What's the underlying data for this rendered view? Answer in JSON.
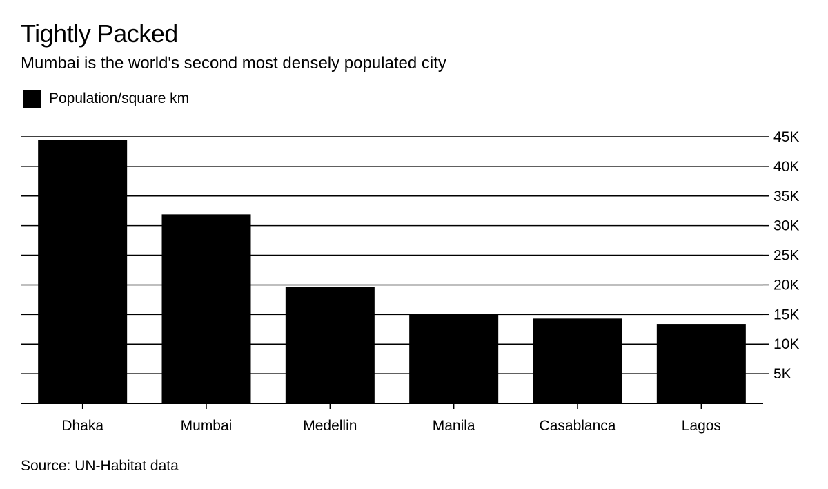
{
  "title": "Tightly Packed",
  "subtitle": "Mumbai is the world's second most densely populated city",
  "legend": {
    "label": "Population/square km",
    "color": "#000000"
  },
  "source": "Source: UN-Habitat data",
  "chart_data": {
    "type": "bar",
    "title": "Tightly Packed",
    "subtitle": "Mumbai is the world's second most densely populated city",
    "categories": [
      "Dhaka",
      "Mumbai",
      "Medellin",
      "Manila",
      "Casablanca",
      "Lagos"
    ],
    "series": [
      {
        "name": "Population/square km",
        "color": "#000000",
        "values": [
          44500,
          31900,
          19700,
          15000,
          14300,
          13400
        ]
      }
    ],
    "ylim": [
      0,
      45000
    ],
    "yticks": [
      5000,
      10000,
      15000,
      20000,
      25000,
      30000,
      35000,
      40000,
      45000
    ],
    "ytick_labels": [
      "5K",
      "10K",
      "15K",
      "20K",
      "25K",
      "30K",
      "35K",
      "40K",
      "45K"
    ],
    "y_axis_side": "right",
    "grid": true,
    "legend_position": "top-left",
    "xlabel": "",
    "ylabel": ""
  }
}
